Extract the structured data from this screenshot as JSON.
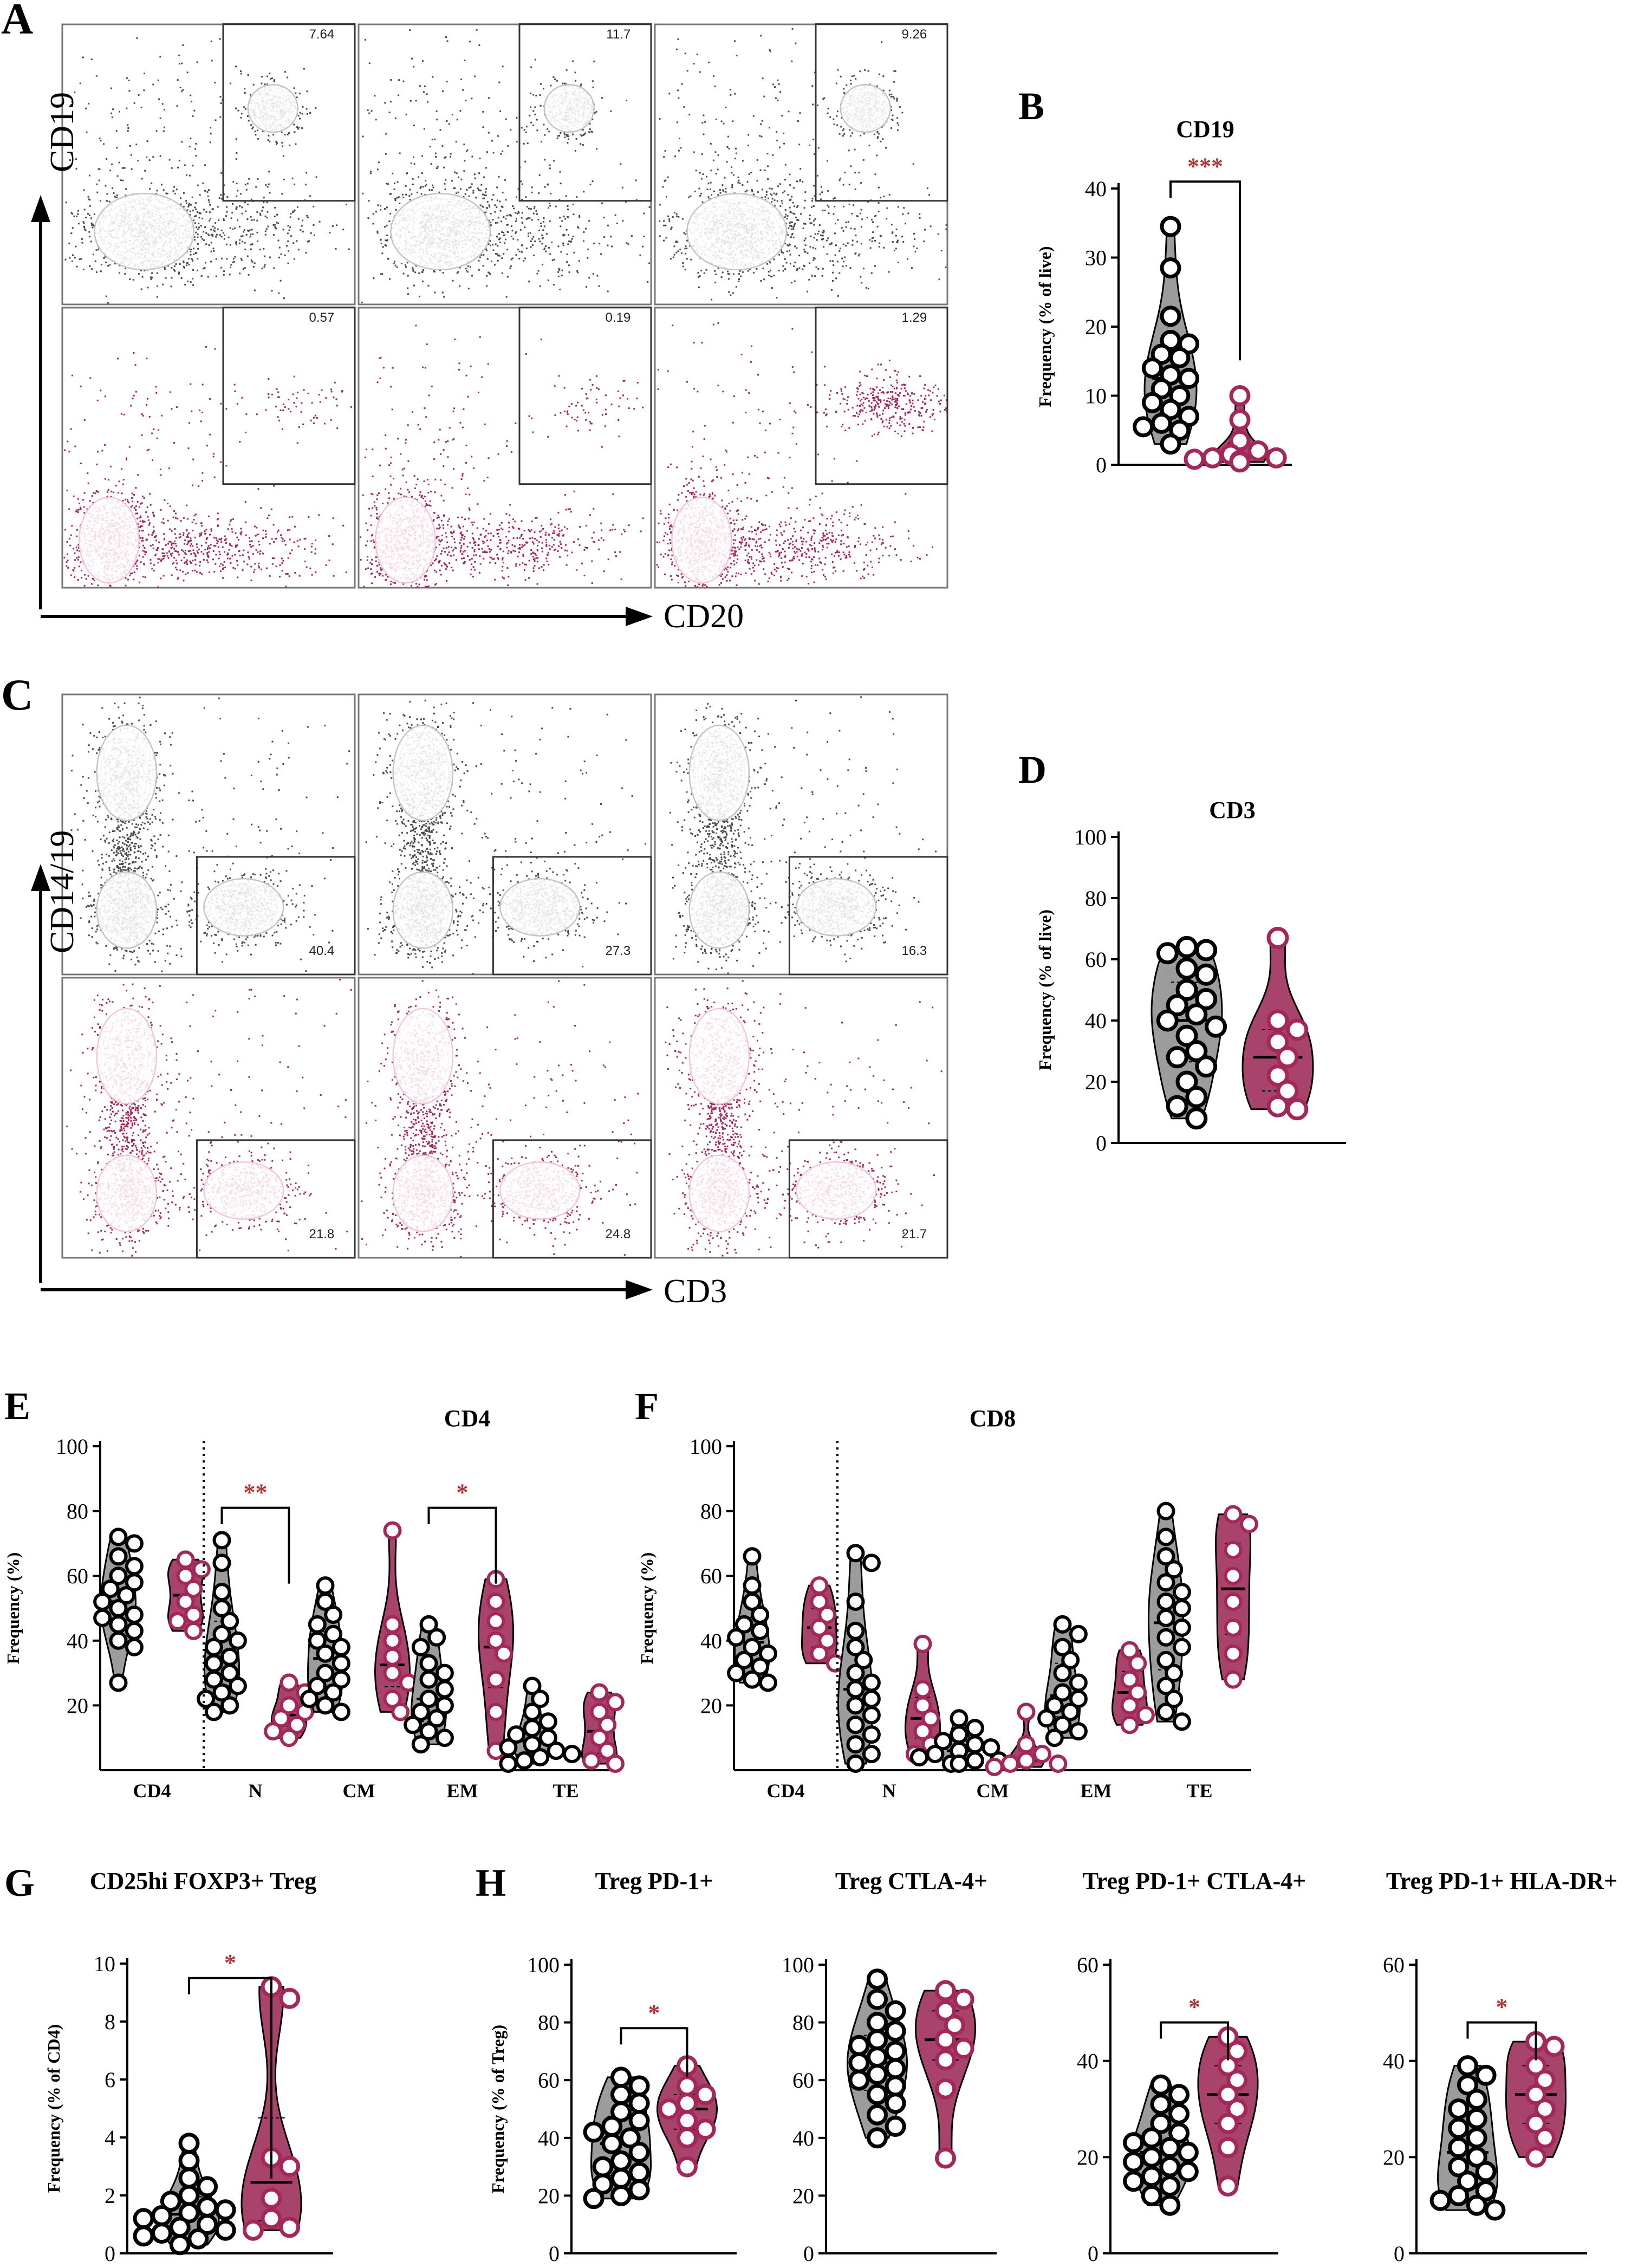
{
  "colors": {
    "control_dots": "#4a4a4a",
    "control_contour": "#c4c4c4",
    "patient_dots": "#a3275b",
    "patient_contour": "#f2c6d8",
    "control_violin": "#9c9c9c",
    "patient_violin": "#a8446b",
    "significance": "#a83a3a",
    "axis": "#000000"
  },
  "panel_letters": [
    "A",
    "B",
    "C",
    "D",
    "E",
    "F",
    "G",
    "H"
  ],
  "flow_A": {
    "y_label": "CD19",
    "x_label": "CD20",
    "gate_values": [
      "7.64",
      "11.7",
      "9.26",
      "0.57",
      "0.19",
      "1.29"
    ]
  },
  "flow_C": {
    "y_label": "CD14/19",
    "x_label": "CD3",
    "gate_values": [
      "40.4",
      "27.3",
      "16.3",
      "21.8",
      "24.8",
      "21.7"
    ]
  },
  "chart_data": [
    {
      "id": "B",
      "type": "violin",
      "title": "CD19",
      "xlabel": "",
      "ylabel": "Frequency (% of live)",
      "ylim": [
        0,
        40
      ],
      "ticks": [
        0,
        10,
        20,
        30,
        40
      ],
      "categories": [
        "",
        ""
      ],
      "groups": [
        {
          "values": [
            34.5,
            28.5,
            21.5,
            18,
            17.5,
            16,
            15.5,
            14,
            13,
            12.5,
            11,
            10,
            9,
            8,
            7,
            6,
            5.5,
            5,
            3
          ]
        },
        {
          "values": [
            10,
            6.5,
            3.5,
            2,
            1.5,
            1,
            1,
            0.8,
            0.6,
            0.4
          ]
        }
      ],
      "significance": [
        {
          "label": "***",
          "from": 0,
          "to": 1,
          "y": 41
        }
      ]
    },
    {
      "id": "D",
      "type": "violin",
      "title": "CD3",
      "xlabel": "",
      "ylabel": "Frequency (% of live)",
      "ylim": [
        0,
        100
      ],
      "ticks": [
        0,
        20,
        40,
        60,
        80,
        100
      ],
      "categories": [
        "",
        ""
      ],
      "groups": [
        {
          "values": [
            64,
            63,
            62,
            57,
            55,
            50,
            47,
            45,
            42,
            40,
            38,
            35,
            30,
            28,
            25,
            20,
            15,
            12,
            8
          ]
        },
        {
          "values": [
            67,
            40,
            37,
            33,
            28,
            22,
            17,
            12,
            11
          ]
        }
      ],
      "significance": []
    },
    {
      "id": "E",
      "type": "violin",
      "title": "CD4",
      "xlabel": "",
      "ylabel": "Frequency (%)",
      "ylim": [
        0,
        100
      ],
      "ticks": [
        20,
        40,
        60,
        80,
        100
      ],
      "categories": [
        "CD4",
        "N",
        "CM",
        "EM",
        "TE"
      ],
      "groups": [
        {
          "cat": 0,
          "values": [
            72,
            70,
            66,
            63,
            60,
            58,
            56,
            54,
            52,
            50,
            48,
            47,
            45,
            43,
            40,
            38,
            27
          ]
        },
        {
          "cat": 0,
          "values": [
            65,
            62,
            60,
            56,
            52,
            48,
            46,
            43
          ]
        },
        {
          "cat": 1,
          "values": [
            71,
            64,
            55,
            50,
            46,
            42,
            40,
            38,
            35,
            33,
            30,
            28,
            26,
            24,
            22,
            20,
            18
          ]
        },
        {
          "cat": 1,
          "values": [
            27,
            24,
            20,
            18,
            16,
            14,
            12,
            10
          ]
        },
        {
          "cat": 2,
          "values": [
            57,
            52,
            48,
            45,
            42,
            40,
            38,
            36,
            33,
            30,
            28,
            26,
            24,
            22,
            20,
            18
          ]
        },
        {
          "cat": 2,
          "values": [
            74,
            45,
            40,
            35,
            30,
            27,
            22,
            18
          ]
        },
        {
          "cat": 3,
          "values": [
            45,
            41,
            38,
            33,
            30,
            28,
            25,
            22,
            20,
            18,
            16,
            14,
            12,
            10,
            8
          ]
        },
        {
          "cat": 3,
          "values": [
            59,
            52,
            46,
            40,
            36,
            28,
            18,
            6
          ]
        },
        {
          "cat": 4,
          "values": [
            26,
            22,
            18,
            15,
            13,
            11,
            10,
            8,
            7,
            6,
            5,
            4,
            3,
            2
          ]
        },
        {
          "cat": 4,
          "values": [
            24,
            21,
            18,
            14,
            10,
            6,
            3,
            2
          ]
        }
      ],
      "separator_after": 0,
      "significance": [
        {
          "label": "**",
          "cat": 1,
          "y": 81
        },
        {
          "label": "*",
          "cat": 3,
          "y": 81
        }
      ]
    },
    {
      "id": "F",
      "type": "violin",
      "title": "CD8",
      "xlabel": "",
      "ylabel": "Frequency (%)",
      "ylim": [
        0,
        100
      ],
      "ticks": [
        20,
        40,
        60,
        80,
        100
      ],
      "categories": [
        "CD4",
        "N",
        "CM",
        "EM",
        "TE"
      ],
      "groups": [
        {
          "cat": 0,
          "values": [
            66,
            57,
            52,
            48,
            45,
            43,
            41,
            38,
            36,
            34,
            32,
            30,
            28,
            27
          ]
        },
        {
          "cat": 0,
          "values": [
            57,
            52,
            48,
            44,
            40,
            36,
            33
          ]
        },
        {
          "cat": 1,
          "values": [
            67,
            64,
            52,
            43,
            38,
            34,
            30,
            27,
            25,
            22,
            20,
            17,
            14,
            11,
            8,
            5,
            2
          ]
        },
        {
          "cat": 1,
          "values": [
            39,
            25,
            20,
            16,
            12,
            8,
            5
          ]
        },
        {
          "cat": 2,
          "values": [
            16,
            13,
            11,
            9,
            8,
            7,
            6,
            5,
            4,
            3,
            3,
            2,
            2
          ]
        },
        {
          "cat": 2,
          "values": [
            18,
            8,
            5,
            3,
            2,
            2,
            1
          ]
        },
        {
          "cat": 3,
          "values": [
            45,
            42,
            38,
            34,
            30,
            27,
            24,
            22,
            20,
            18,
            16,
            14,
            12,
            10
          ]
        },
        {
          "cat": 3,
          "values": [
            37,
            33,
            28,
            24,
            20,
            17,
            14
          ]
        },
        {
          "cat": 4,
          "values": [
            80,
            72,
            66,
            62,
            58,
            55,
            52,
            50,
            47,
            44,
            41,
            38,
            34,
            30,
            26,
            22,
            18,
            15
          ]
        },
        {
          "cat": 4,
          "values": [
            79,
            76,
            68,
            60,
            52,
            44,
            36,
            28
          ]
        }
      ],
      "separator_after": 0,
      "significance": []
    },
    {
      "id": "G",
      "type": "violin",
      "title": "CD25hi FOXP3+ Treg",
      "xlabel": "",
      "ylabel": "Frequency (% of CD4)",
      "ylim": [
        0,
        10
      ],
      "ticks": [
        0,
        2,
        4,
        6,
        8,
        10
      ],
      "categories": [
        "",
        ""
      ],
      "groups": [
        {
          "values": [
            3.8,
            3.2,
            2.6,
            2.3,
            2.0,
            1.8,
            1.6,
            1.5,
            1.4,
            1.3,
            1.2,
            1.0,
            0.9,
            0.8,
            0.7,
            0.6,
            0.5,
            0.3
          ]
        },
        {
          "values": [
            9.2,
            8.8,
            3.3,
            3.0,
            1.9,
            1.2,
            0.9,
            0.8
          ]
        }
      ],
      "significance": [
        {
          "label": "*",
          "from": 0,
          "to": 1,
          "y": 9.5
        }
      ]
    },
    {
      "id": "H1",
      "type": "violin",
      "title": "Treg PD-1+",
      "xlabel": "",
      "ylabel": "Frequency (% of Treg)",
      "ylim": [
        0,
        100
      ],
      "ticks": [
        0,
        20,
        40,
        60,
        80,
        100
      ],
      "categories": [
        "",
        ""
      ],
      "groups": [
        {
          "values": [
            61,
            58,
            55,
            52,
            49,
            46,
            44,
            42,
            40,
            38,
            35,
            32,
            30,
            28,
            26,
            24,
            22,
            20,
            19
          ]
        },
        {
          "values": [
            65,
            58,
            55,
            52,
            50,
            46,
            43,
            40,
            30
          ]
        }
      ],
      "significance": [
        {
          "label": "*",
          "from": 0,
          "to": 1,
          "y": 78
        }
      ]
    },
    {
      "id": "H2",
      "type": "violin",
      "title": "Treg CTLA-4+",
      "xlabel": "",
      "ylabel": "",
      "ylim": [
        0,
        100
      ],
      "ticks": [
        0,
        20,
        40,
        60,
        80,
        100
      ],
      "categories": [
        "",
        ""
      ],
      "groups": [
        {
          "values": [
            95,
            88,
            84,
            80,
            77,
            74,
            72,
            70,
            68,
            66,
            64,
            62,
            60,
            58,
            55,
            52,
            48,
            44,
            40
          ]
        },
        {
          "values": [
            91,
            88,
            84,
            79,
            74,
            71,
            67,
            57,
            33
          ]
        }
      ],
      "significance": []
    },
    {
      "id": "H3",
      "type": "violin",
      "title": "Treg PD-1+ CTLA-4+",
      "xlabel": "",
      "ylabel": "",
      "ylim": [
        0,
        60
      ],
      "ticks": [
        0,
        20,
        40,
        60
      ],
      "categories": [
        "",
        ""
      ],
      "groups": [
        {
          "values": [
            35,
            33,
            31,
            29,
            27,
            25,
            24,
            23,
            22,
            21,
            20,
            19,
            18,
            17,
            16,
            15,
            14,
            12,
            10
          ]
        },
        {
          "values": [
            45,
            42,
            39,
            36,
            33,
            30,
            27,
            22,
            14
          ]
        }
      ],
      "significance": [
        {
          "label": "*",
          "from": 0,
          "to": 1,
          "y": 48
        }
      ]
    },
    {
      "id": "H4",
      "type": "violin",
      "title": "Treg PD-1+ HLA-DR+",
      "xlabel": "",
      "ylabel": "",
      "ylim": [
        0,
        60
      ],
      "ticks": [
        0,
        20,
        40,
        60
      ],
      "categories": [
        "",
        ""
      ],
      "groups": [
        {
          "values": [
            39,
            37,
            35,
            32,
            30,
            28,
            26,
            24,
            22,
            20,
            18,
            17,
            15,
            13,
            12,
            11,
            10,
            9
          ]
        },
        {
          "values": [
            44,
            43,
            39,
            36,
            33,
            30,
            27,
            24,
            20
          ]
        }
      ],
      "significance": [
        {
          "label": "*",
          "from": 0,
          "to": 1,
          "y": 48
        }
      ]
    }
  ]
}
